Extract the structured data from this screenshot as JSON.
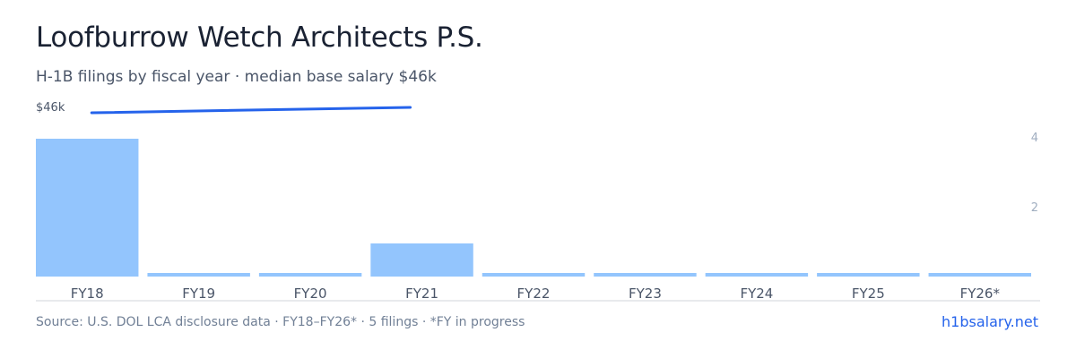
{
  "header": {
    "title": "Loofburrow Wetch Architects P.S.",
    "subtitle": "H-1B filings by fiscal year · median base salary $46k"
  },
  "footer": {
    "source": "Source: U.S. DOL LCA disclosure data · FY18–FY26* · 5 filings · *FY in progress",
    "site": "h1bsalary.net"
  },
  "colors": {
    "bar": "#93c5fd",
    "salary_line": "#2563eb",
    "axis": "#d1d5db",
    "tick_text": "#4a5568",
    "right_tick_text": "#a0aec0"
  },
  "chart_data": {
    "type": "bar",
    "categories": [
      "FY18",
      "FY19",
      "FY20",
      "FY21",
      "FY22",
      "FY23",
      "FY24",
      "FY25",
      "FY26*"
    ],
    "series": [
      {
        "values": [
          4,
          0,
          0,
          1,
          0,
          0,
          0,
          0,
          0
        ],
        "axis": "right"
      },
      {
        "type": "line",
        "values": [
          45500,
          null,
          null,
          46000,
          null,
          null,
          null,
          null,
          null
        ],
        "axis": "left"
      }
    ],
    "left_axis": {
      "tick_label": "$46k",
      "tick_value": 46000
    },
    "right_axis": {
      "ticks": [
        2,
        4
      ]
    },
    "grid": false
  }
}
